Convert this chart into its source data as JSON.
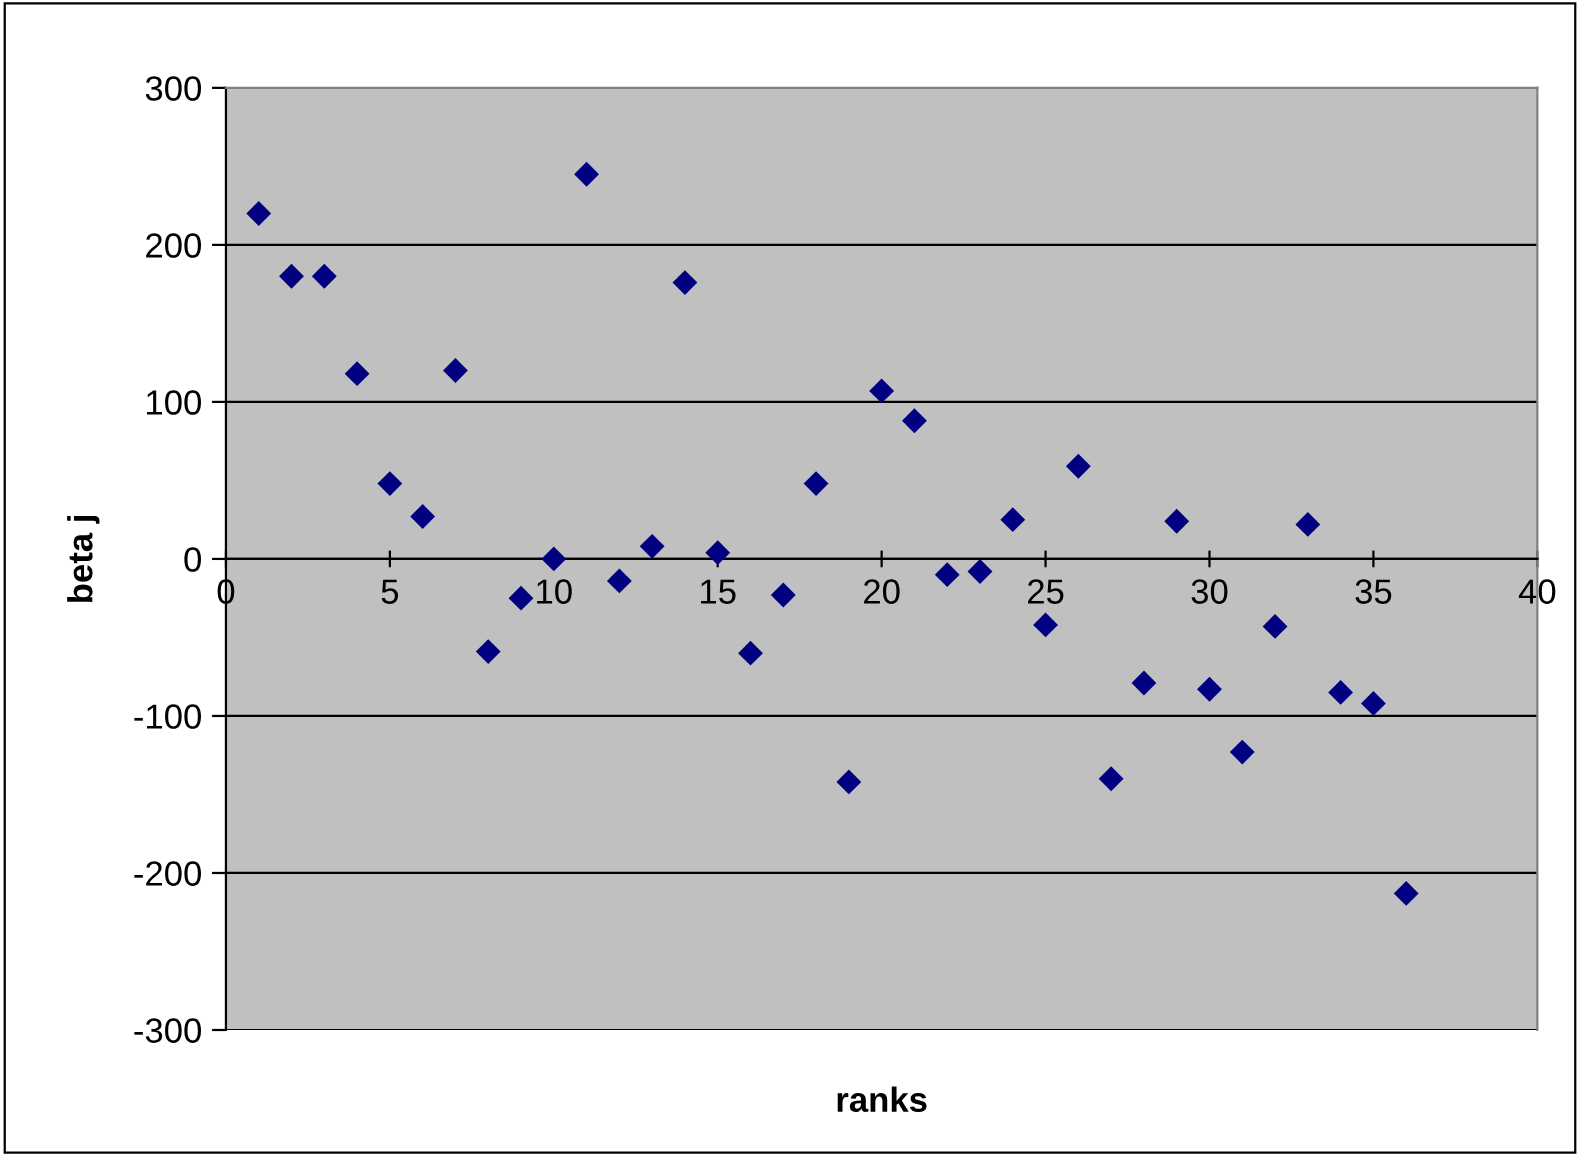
{
  "chart_data": {
    "type": "scatter",
    "xlabel": "ranks",
    "ylabel": "beta j",
    "x": [
      1,
      2,
      3,
      4,
      5,
      6,
      7,
      8,
      9,
      10,
      11,
      12,
      13,
      14,
      15,
      16,
      17,
      18,
      19,
      20,
      21,
      22,
      23,
      24,
      25,
      26,
      27,
      28,
      29,
      30,
      31,
      32,
      33,
      34,
      35,
      36
    ],
    "series": [
      {
        "color": "#000080",
        "values": [
          220,
          180,
          180,
          118,
          48,
          27,
          120,
          -59,
          -25,
          0,
          245,
          -14,
          8,
          176,
          4,
          -60,
          -23,
          48,
          -142,
          107,
          88,
          -10,
          -8,
          25,
          -42,
          59,
          -140,
          -79,
          24,
          -83,
          -123,
          -43,
          22,
          -85,
          -92,
          -213
        ]
      }
    ],
    "xlim": [
      0,
      40
    ],
    "xticks": [
      0,
      5,
      10,
      15,
      20,
      25,
      30,
      35,
      40
    ],
    "ylim": [
      -300,
      300
    ],
    "yticks": [
      -300,
      -200,
      -100,
      0,
      100,
      200,
      300
    ],
    "grid": "y",
    "marker": "diamond",
    "legend": false
  }
}
